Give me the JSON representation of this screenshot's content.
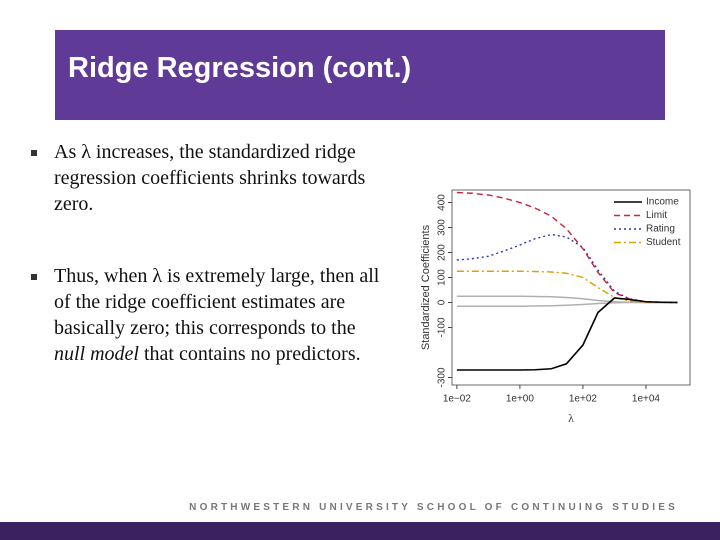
{
  "header": {
    "title": "Ridge Regression (cont.)"
  },
  "bullets": [
    [
      "As λ increases, the standardized ridge regression coefficients shrinks towards zero."
    ],
    [
      "Thus, when λ is extremely large, then all of the ridge coefficient estimates are basically zero; this corresponds to the ",
      "null model",
      " that contains no predictors."
    ]
  ],
  "footer": "NORTHWESTERN UNIVERSITY SCHOOL OF CONTINUING STUDIES",
  "chart_data": {
    "type": "line",
    "xlabel": "λ",
    "ylabel": "Standardized Coefficients",
    "x_scale": "log",
    "x": [
      0.01,
      0.03,
      0.1,
      0.3,
      1,
      3,
      10,
      30,
      100,
      300,
      1000,
      3000,
      10000,
      30000,
      100000
    ],
    "series": [
      {
        "name": "Income",
        "color": "#000000",
        "dash": "none",
        "values": [
          -270,
          -270,
          -270,
          -270,
          -270,
          -269,
          -265,
          -245,
          -170,
          -40,
          18,
          12,
          3,
          1,
          0
        ]
      },
      {
        "name": "Limit",
        "color": "#d0203a",
        "dash": "6 4",
        "values": [
          440,
          437,
          430,
          418,
          400,
          378,
          345,
          295,
          215,
          120,
          40,
          14,
          3,
          1,
          0
        ]
      },
      {
        "name": "Rating",
        "color": "#2536b8",
        "dash": "2 3",
        "values": [
          170,
          175,
          185,
          205,
          230,
          255,
          272,
          262,
          220,
          130,
          45,
          15,
          3,
          1,
          0
        ]
      },
      {
        "name": "Student",
        "color": "#e0a000",
        "dash": "7 3 2 3",
        "values": [
          125,
          125,
          125,
          125,
          125,
          124,
          122,
          117,
          100,
          60,
          20,
          6,
          1,
          0,
          0
        ]
      },
      {
        "color": "#b0b0b0",
        "dash": "none",
        "values": [
          25,
          25,
          25,
          25,
          25,
          24,
          23,
          20,
          15,
          8,
          3,
          1,
          0,
          0,
          0
        ]
      },
      {
        "color": "#b0b0b0",
        "dash": "none",
        "values": [
          -15,
          -15,
          -15,
          -15,
          -15,
          -14,
          -13,
          -11,
          -8,
          -4,
          -1,
          0,
          0,
          0,
          0
        ]
      }
    ],
    "xlim": [
      0.007,
      250000
    ],
    "xticks": [
      {
        "value": 0.01,
        "label": "1e−02"
      },
      {
        "value": 1,
        "label": "1e+00"
      },
      {
        "value": 100,
        "label": "1e+02"
      },
      {
        "value": 10000,
        "label": "1e+04"
      }
    ],
    "ylim": [
      -330,
      450
    ],
    "yticks": [
      -300,
      -100,
      0,
      100,
      200,
      300,
      400
    ],
    "legend": "topright"
  }
}
